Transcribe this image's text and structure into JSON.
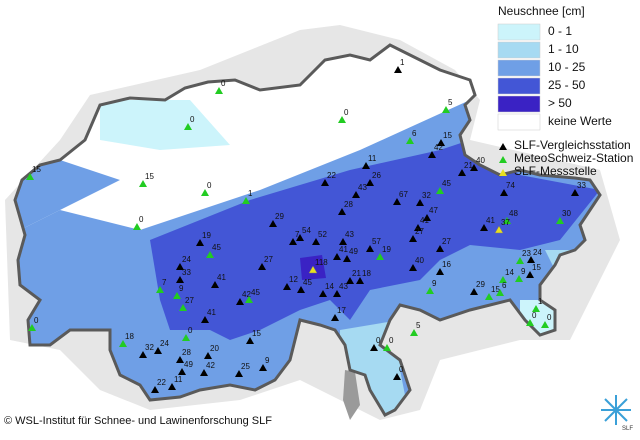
{
  "legend": {
    "title": "Neuschnee [cm]",
    "classes": [
      {
        "label": "0 - 1",
        "color": "#ccf4fb"
      },
      {
        "label": "1 - 10",
        "color": "#a6daf2"
      },
      {
        "label": "10 - 25",
        "color": "#6f9fe6"
      },
      {
        "label": "25 - 50",
        "color": "#4356d6"
      },
      {
        "label": "> 50",
        "color": "#3a22c4"
      },
      {
        "label": "keine Werte",
        "color": "#ffffff"
      }
    ],
    "symbols": [
      {
        "label": "SLF-Vergleichsstation",
        "color": "#000000"
      },
      {
        "label": "MeteoSchweiz-Station",
        "color": "#22cc22"
      },
      {
        "label": "SLF-Messstelle",
        "color": "#e8e020"
      }
    ]
  },
  "stations": [
    0,
    0,
    1,
    0,
    5,
    6,
    15,
    42,
    21,
    40,
    15,
    15,
    0,
    11,
    26,
    22,
    43,
    28,
    67,
    32,
    45,
    74,
    33,
    1,
    0,
    29,
    41,
    47,
    27,
    41,
    48,
    30,
    37,
    54,
    7,
    52,
    43,
    57,
    19,
    27,
    19,
    45,
    41,
    49,
    27,
    24,
    33,
    41,
    23,
    24,
    118,
    21,
    18,
    12,
    45,
    14,
    40,
    16,
    14,
    9,
    15,
    7,
    9,
    27,
    42,
    45,
    43,
    29,
    15,
    6,
    9,
    1,
    41,
    17,
    0,
    0,
    0,
    15,
    5,
    18,
    32,
    24,
    20,
    28,
    49,
    42,
    9,
    0,
    0,
    25,
    22,
    11,
    0,
    0
  ],
  "credit": "© WSL-Institut für Schnee- und Lawinenforschung SLF",
  "logo": "SLF"
}
